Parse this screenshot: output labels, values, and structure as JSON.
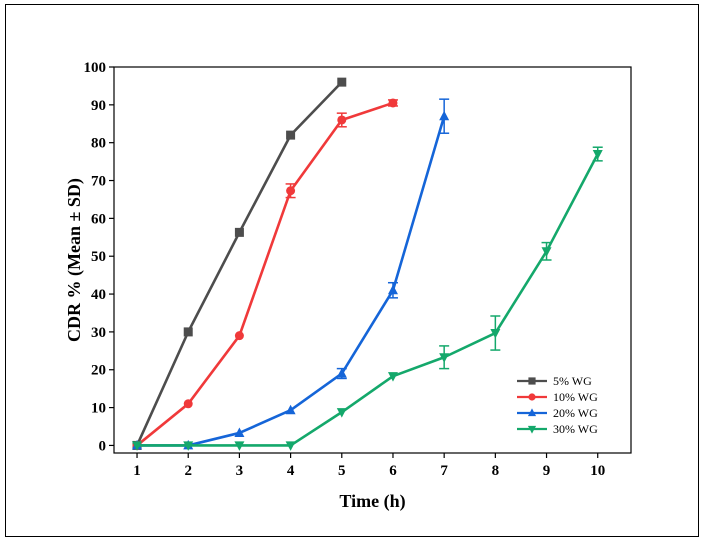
{
  "chart_data": {
    "type": "line",
    "xlabel": "Time (h)",
    "ylabel": "CDR % (Mean ± SD)",
    "xlim": [
      0.55,
      10.65
    ],
    "ylim": [
      -2,
      100
    ],
    "x_ticks": [
      1,
      2,
      3,
      4,
      5,
      6,
      7,
      8,
      9,
      10
    ],
    "y_ticks": [
      0,
      10,
      20,
      30,
      40,
      50,
      60,
      70,
      80,
      90,
      100
    ],
    "legend_position": "bottom-right",
    "grid": false,
    "series": [
      {
        "name": "5% WG",
        "color": "#4d4d4d",
        "marker": "square",
        "x": [
          1,
          2,
          3,
          4,
          5
        ],
        "y": [
          0,
          30,
          56.3,
          82,
          96
        ],
        "err": [
          0,
          0,
          0,
          0,
          0
        ]
      },
      {
        "name": "10% WG",
        "color": "#f0393a",
        "marker": "circle",
        "x": [
          1,
          2,
          3,
          4,
          5,
          6
        ],
        "y": [
          0,
          11,
          29,
          67.3,
          86,
          90.5
        ],
        "err": [
          0,
          0.5,
          0,
          1.8,
          1.8,
          0.8
        ]
      },
      {
        "name": "20% WG",
        "color": "#1565d8",
        "marker": "triangle-up",
        "x": [
          1,
          2,
          3,
          4,
          5,
          6,
          7
        ],
        "y": [
          0,
          0,
          3.3,
          9.3,
          19,
          41,
          87
        ],
        "err": [
          0,
          0,
          0,
          0,
          1.3,
          2,
          4.5
        ]
      },
      {
        "name": "30% WG",
        "color": "#14a86b",
        "marker": "triangle-down",
        "x": [
          1,
          2,
          3,
          4,
          5,
          6,
          7,
          8,
          9,
          10
        ],
        "y": [
          0,
          0,
          0,
          0,
          8.8,
          18.3,
          23.3,
          29.7,
          51.3,
          77
        ],
        "err": [
          0,
          0,
          0,
          0,
          0.5,
          0.5,
          3,
          4.5,
          2.3,
          1.8
        ]
      }
    ]
  }
}
